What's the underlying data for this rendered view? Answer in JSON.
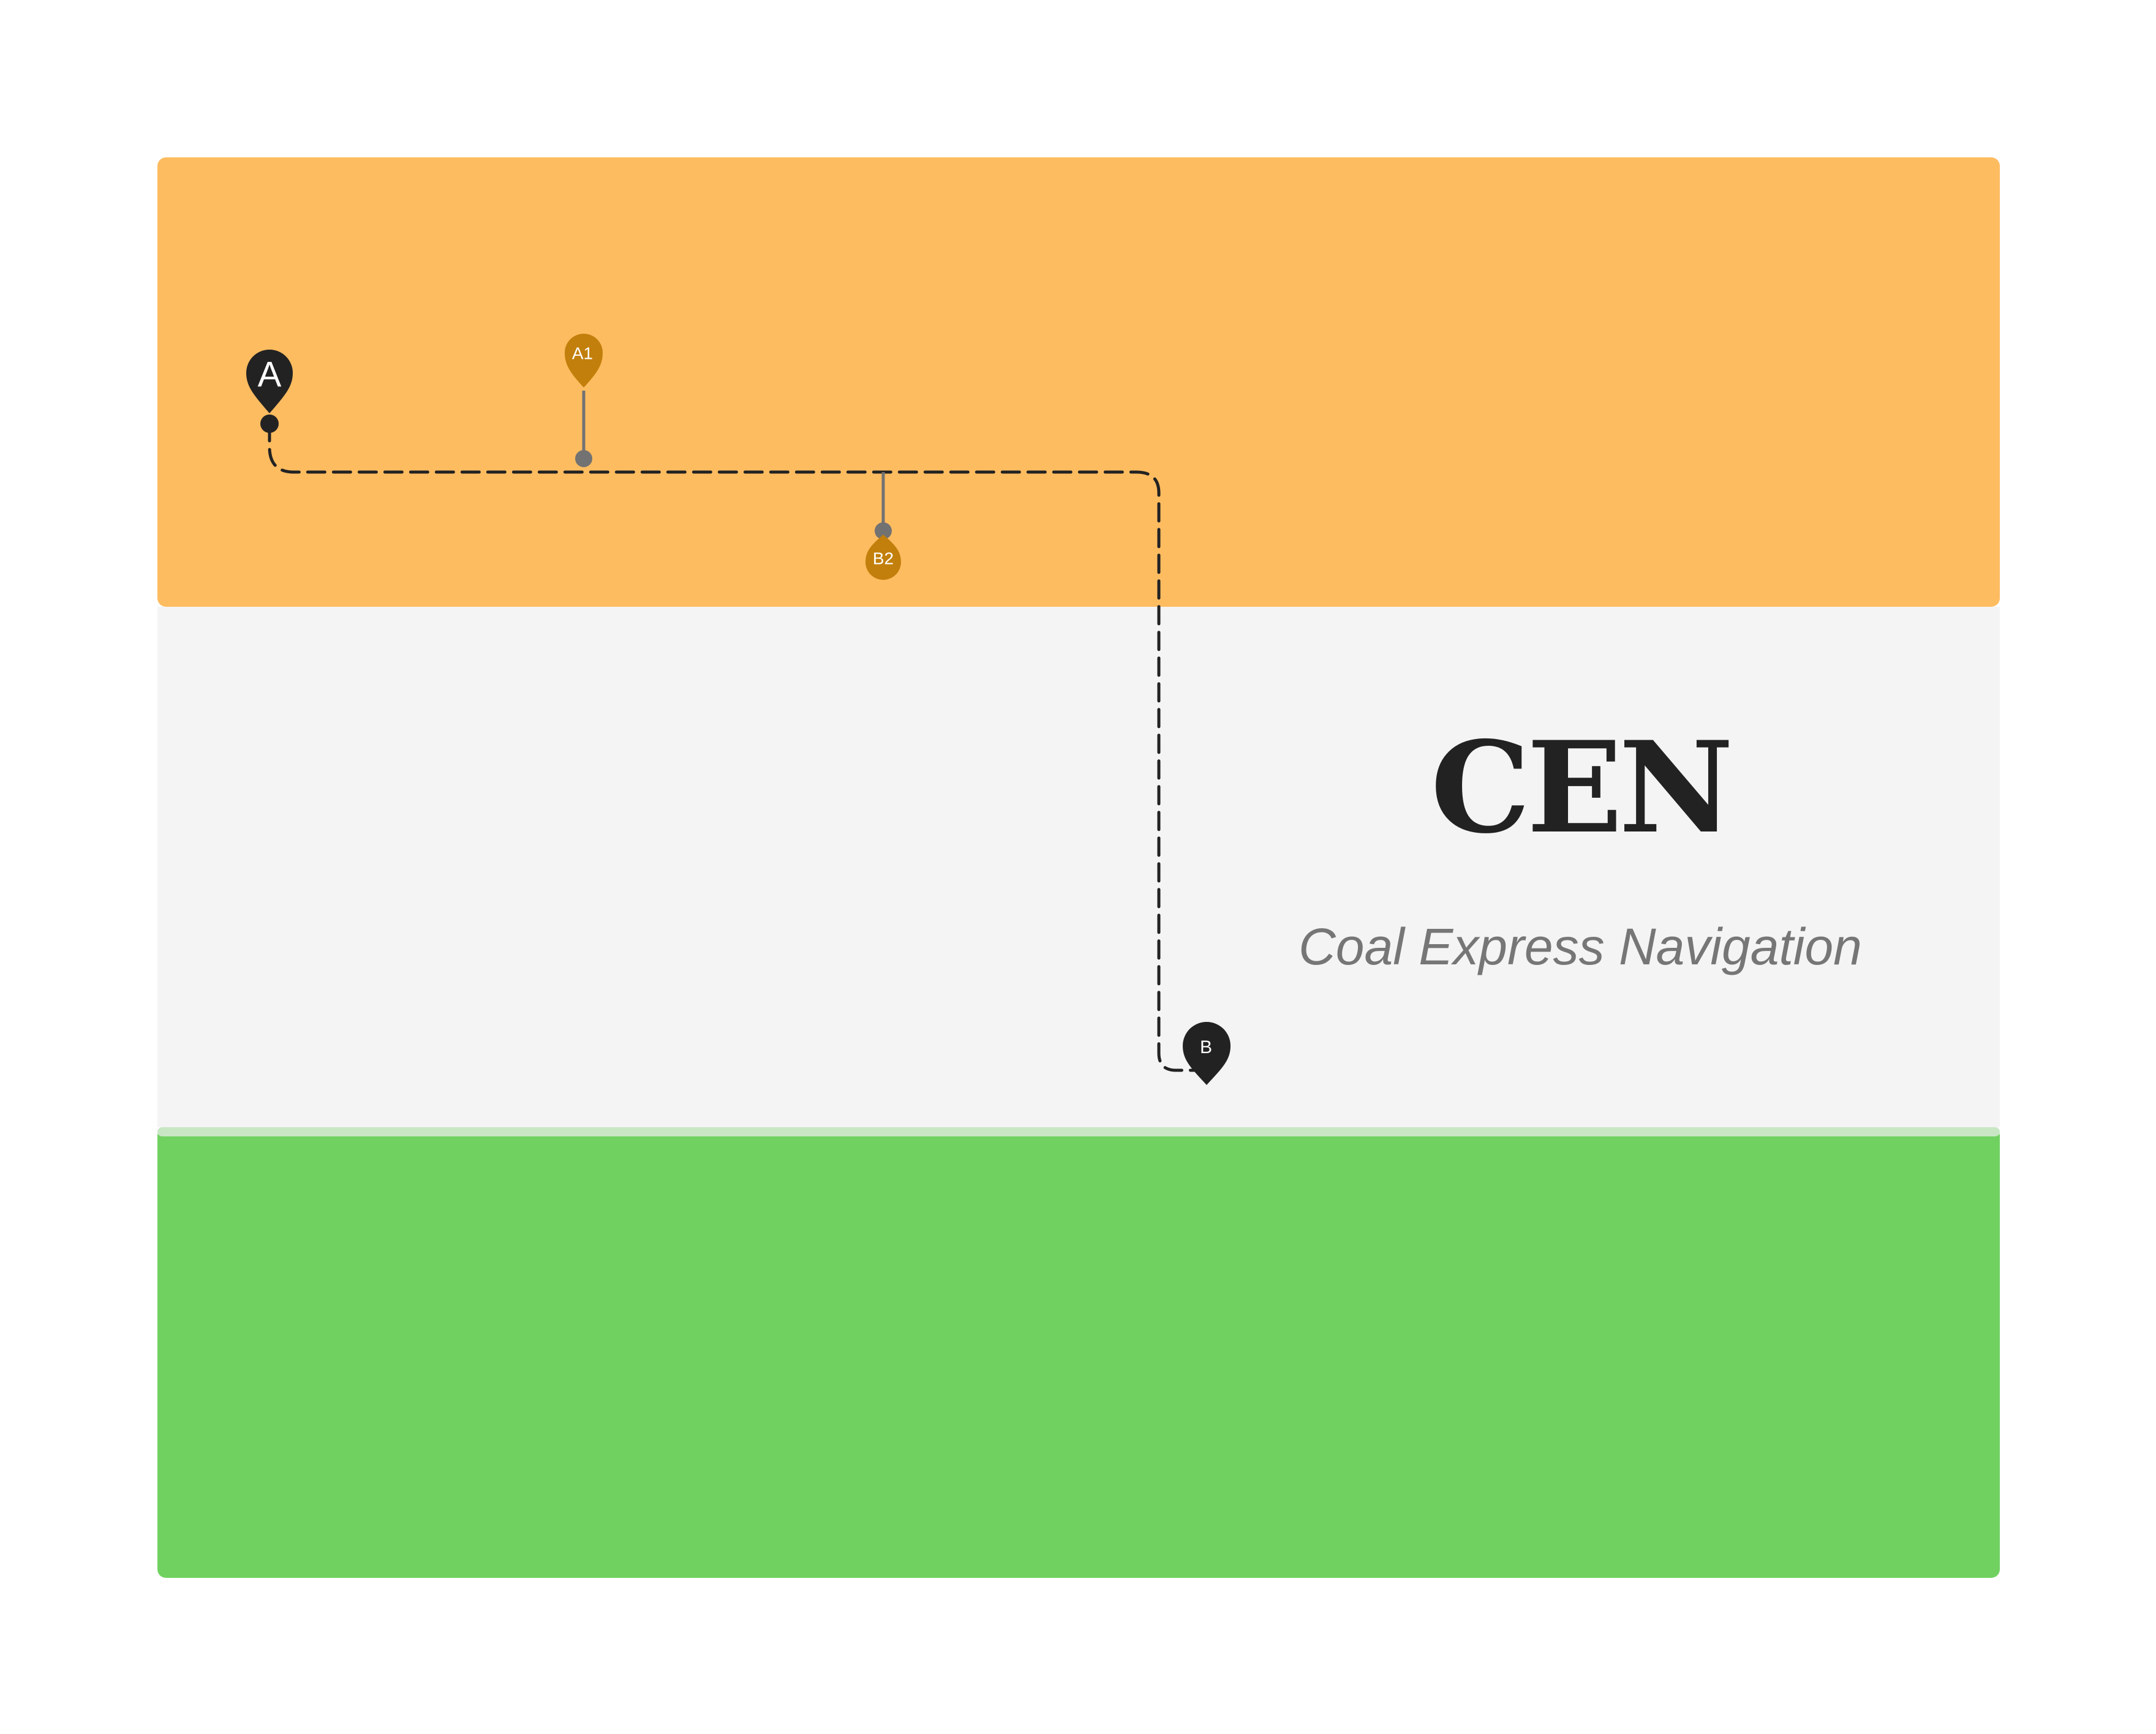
{
  "brand": {
    "title": "CEN",
    "subtitle": "Coal Express Navigation"
  },
  "colors": {
    "band_top": "#febc60",
    "band_middle": "#f4f4f4",
    "band_bottom": "#70d160",
    "band_separator": "#c8e6c4",
    "route_line": "#222222",
    "pin_primary": "#222222",
    "pin_secondary": "#c27f0b",
    "connector": "#727272",
    "title_text": "#222222",
    "subtitle_text": "#767676"
  },
  "route": {
    "start_label": "A",
    "end_label": "B"
  },
  "waypoints": [
    {
      "label": "A1",
      "icon": "map-pin-icon"
    },
    {
      "label": "B2",
      "icon": "map-pin-icon"
    }
  ]
}
